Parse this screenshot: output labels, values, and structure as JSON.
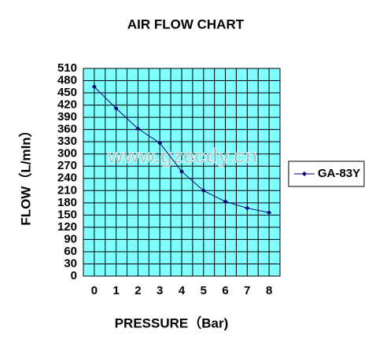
{
  "chart_data": {
    "type": "line",
    "title": "AIR FLOW CHART",
    "x_label": "PRESSURE（Bar)",
    "y_label": "FLOW（L/mIn）",
    "watermark": "www.gzecdy.cn",
    "x": [
      0,
      1,
      2,
      3,
      4,
      5,
      6,
      7,
      8
    ],
    "series": [
      {
        "name": "GA-83Y",
        "color": "#000080",
        "values": [
          465,
          412,
          362,
          327,
          257,
          210,
          183,
          167,
          156
        ]
      }
    ],
    "xlim": [
      -0.5,
      8.5
    ],
    "xticks": [
      0,
      1,
      2,
      3,
      4,
      5,
      6,
      7,
      8
    ],
    "ylim": [
      0,
      510
    ],
    "yticks": [
      0,
      30,
      60,
      90,
      120,
      150,
      180,
      210,
      240,
      270,
      300,
      330,
      360,
      390,
      420,
      450,
      480,
      510
    ],
    "grid": true,
    "background": "#80ffff",
    "legend": "right"
  }
}
